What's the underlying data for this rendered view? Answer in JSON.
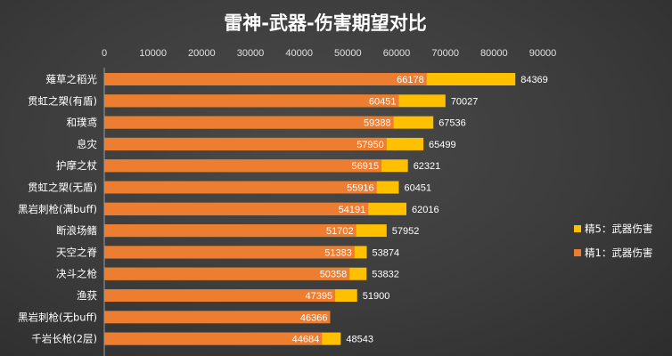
{
  "chart_data": {
    "type": "bar",
    "orientation": "horizontal",
    "title": "雷神-武器-伤害期望对比",
    "xlim": [
      0,
      90000
    ],
    "xticks": [
      0,
      10000,
      20000,
      30000,
      40000,
      50000,
      60000,
      70000,
      80000,
      90000
    ],
    "grid": false,
    "legend_position": "right",
    "categories": [
      "薙草之稻光",
      "贯虹之槊(有盾)",
      "和璞鸢",
      "息灾",
      "护摩之杖",
      "贯虹之槊(无盾)",
      "黑岩刺枪(满buff)",
      "断浪场鳍",
      "天空之脊",
      "决斗之枪",
      "渔获",
      "黑岩刺枪(无buff)",
      "千岩长枪(2层)"
    ],
    "series": [
      {
        "name": "精1：武器伤害",
        "color": "#ed7d31",
        "values": [
          66178,
          60451,
          59388,
          57950,
          56915,
          55916,
          54191,
          51702,
          51383,
          50358,
          47395,
          46366,
          44684
        ]
      },
      {
        "name": "精5：武器伤害",
        "color": "#ffc000",
        "values": [
          84369,
          70027,
          67536,
          65499,
          62321,
          60451,
          62016,
          57952,
          53874,
          53832,
          51900,
          null,
          48543
        ]
      }
    ]
  }
}
